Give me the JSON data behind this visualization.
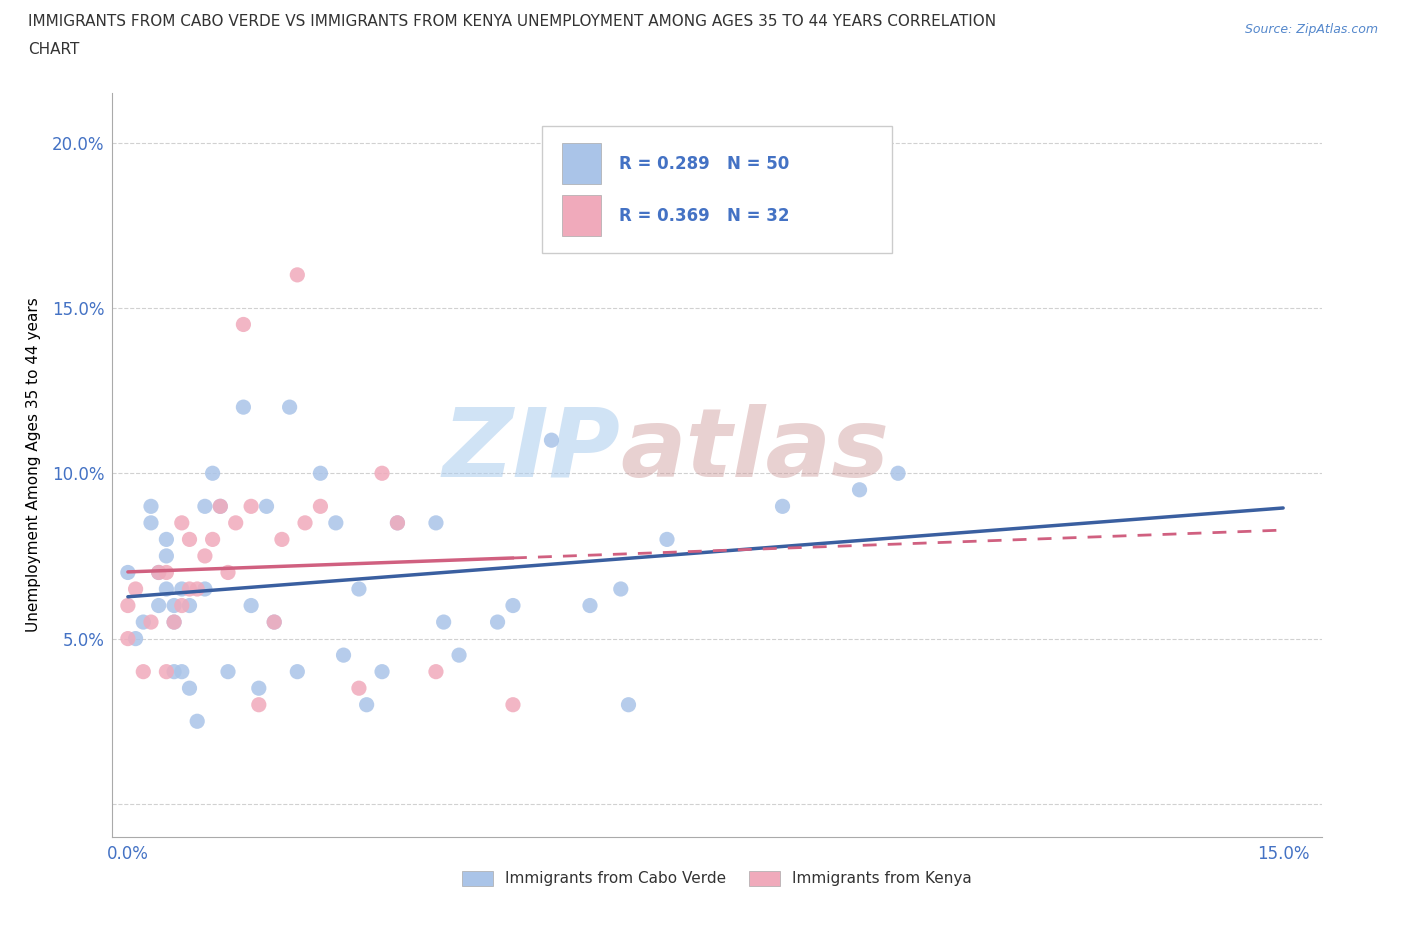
{
  "title_line1": "IMMIGRANTS FROM CABO VERDE VS IMMIGRANTS FROM KENYA UNEMPLOYMENT AMONG AGES 35 TO 44 YEARS CORRELATION",
  "title_line2": "CHART",
  "source_text": "Source: ZipAtlas.com",
  "ylabel": "Unemployment Among Ages 35 to 44 years",
  "xlim": [
    -0.002,
    0.155
  ],
  "ylim": [
    -0.01,
    0.215
  ],
  "x_ticks": [
    0.0,
    0.025,
    0.05,
    0.075,
    0.1,
    0.125,
    0.15
  ],
  "x_tick_labels": [
    "0.0%",
    "",
    "",
    "",
    "",
    "",
    "15.0%"
  ],
  "y_ticks": [
    0.0,
    0.05,
    0.1,
    0.15,
    0.2
  ],
  "y_tick_labels": [
    "",
    "5.0%",
    "10.0%",
    "15.0%",
    "20.0%"
  ],
  "cabo_verde_color": "#aac4e8",
  "kenya_color": "#f0aabb",
  "cabo_verde_line_color": "#3a5fa0",
  "kenya_line_color": "#d06080",
  "cabo_verde_R": 0.289,
  "cabo_verde_N": 50,
  "kenya_R": 0.369,
  "kenya_N": 32,
  "watermark_zip": "ZIP",
  "watermark_atlas": "atlas",
  "cabo_verde_x": [
    0.0,
    0.001,
    0.002,
    0.003,
    0.003,
    0.004,
    0.004,
    0.005,
    0.005,
    0.005,
    0.006,
    0.006,
    0.006,
    0.007,
    0.007,
    0.008,
    0.008,
    0.009,
    0.01,
    0.01,
    0.011,
    0.012,
    0.013,
    0.015,
    0.016,
    0.017,
    0.018,
    0.019,
    0.021,
    0.022,
    0.025,
    0.027,
    0.028,
    0.03,
    0.031,
    0.033,
    0.035,
    0.04,
    0.041,
    0.043,
    0.048,
    0.05,
    0.055,
    0.06,
    0.064,
    0.065,
    0.07,
    0.085,
    0.095,
    0.1
  ],
  "cabo_verde_y": [
    0.07,
    0.05,
    0.055,
    0.085,
    0.09,
    0.06,
    0.07,
    0.065,
    0.075,
    0.08,
    0.04,
    0.055,
    0.06,
    0.04,
    0.065,
    0.035,
    0.06,
    0.025,
    0.065,
    0.09,
    0.1,
    0.09,
    0.04,
    0.12,
    0.06,
    0.035,
    0.09,
    0.055,
    0.12,
    0.04,
    0.1,
    0.085,
    0.045,
    0.065,
    0.03,
    0.04,
    0.085,
    0.085,
    0.055,
    0.045,
    0.055,
    0.06,
    0.11,
    0.06,
    0.065,
    0.03,
    0.08,
    0.09,
    0.095,
    0.1
  ],
  "kenya_x": [
    0.0,
    0.0,
    0.001,
    0.002,
    0.003,
    0.004,
    0.005,
    0.005,
    0.006,
    0.007,
    0.007,
    0.008,
    0.008,
    0.009,
    0.01,
    0.011,
    0.012,
    0.013,
    0.014,
    0.015,
    0.016,
    0.017,
    0.019,
    0.02,
    0.022,
    0.023,
    0.025,
    0.03,
    0.033,
    0.035,
    0.04,
    0.05
  ],
  "kenya_y": [
    0.05,
    0.06,
    0.065,
    0.04,
    0.055,
    0.07,
    0.04,
    0.07,
    0.055,
    0.06,
    0.085,
    0.065,
    0.08,
    0.065,
    0.075,
    0.08,
    0.09,
    0.07,
    0.085,
    0.145,
    0.09,
    0.03,
    0.055,
    0.08,
    0.16,
    0.085,
    0.09,
    0.035,
    0.1,
    0.085,
    0.04,
    0.03
  ]
}
